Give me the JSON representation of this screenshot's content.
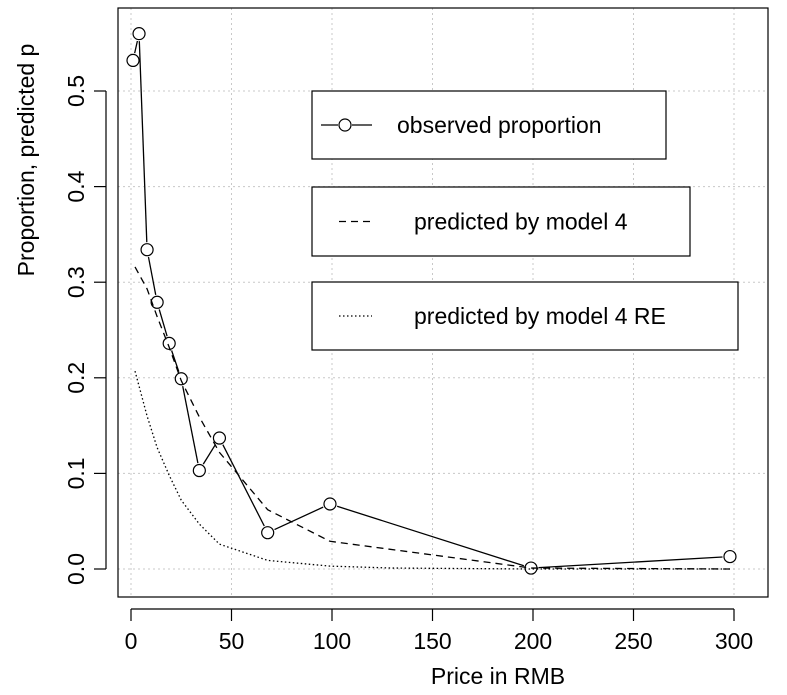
{
  "chart_data": {
    "type": "line",
    "title": "",
    "xlabel": "Price in RMB",
    "ylabel": "Proportion, predicted p",
    "xlim": [
      0,
      300
    ],
    "ylim": [
      0,
      0.56
    ],
    "x_ticks": [
      0,
      50,
      100,
      150,
      200,
      250,
      300
    ],
    "x_tick_labels": [
      "0",
      "50",
      "100",
      "150",
      "200",
      "250",
      "300"
    ],
    "y_ticks": [
      0.0,
      0.1,
      0.2,
      0.3,
      0.4,
      0.5
    ],
    "y_tick_labels": [
      "0.0",
      "0.1",
      "0.2",
      "0.3",
      "0.4",
      "0.5"
    ],
    "grid": true,
    "legend_position": "top-right",
    "series": [
      {
        "name": "observed proportion",
        "style": "solid-line-circles",
        "points": [
          [
            1,
            0.532
          ],
          [
            4,
            0.56
          ],
          [
            8,
            0.334
          ],
          [
            13,
            0.279
          ],
          [
            19,
            0.236
          ],
          [
            25,
            0.199
          ],
          [
            34,
            0.103
          ],
          [
            44,
            0.137
          ],
          [
            68,
            0.038
          ],
          [
            99,
            0.068
          ],
          [
            199,
            0.001
          ],
          [
            298,
            0.013
          ]
        ]
      },
      {
        "name": "predicted by model 4",
        "style": "dashed",
        "points": [
          [
            2,
            0.316
          ],
          [
            8,
            0.293
          ],
          [
            13,
            0.264
          ],
          [
            19,
            0.232
          ],
          [
            25,
            0.197
          ],
          [
            34,
            0.159
          ],
          [
            44,
            0.122
          ],
          [
            68,
            0.062
          ],
          [
            99,
            0.029
          ],
          [
            199,
            0.001
          ],
          [
            298,
            0.0
          ]
        ]
      },
      {
        "name": "predicted by model 4 RE",
        "style": "dotted",
        "points": [
          [
            2,
            0.207
          ],
          [
            8,
            0.16
          ],
          [
            13,
            0.127
          ],
          [
            19,
            0.098
          ],
          [
            25,
            0.072
          ],
          [
            34,
            0.047
          ],
          [
            44,
            0.026
          ],
          [
            68,
            0.009
          ],
          [
            99,
            0.003
          ],
          [
            130,
            0.001
          ],
          [
            199,
            0.0
          ],
          [
            298,
            0.0
          ]
        ]
      }
    ]
  }
}
